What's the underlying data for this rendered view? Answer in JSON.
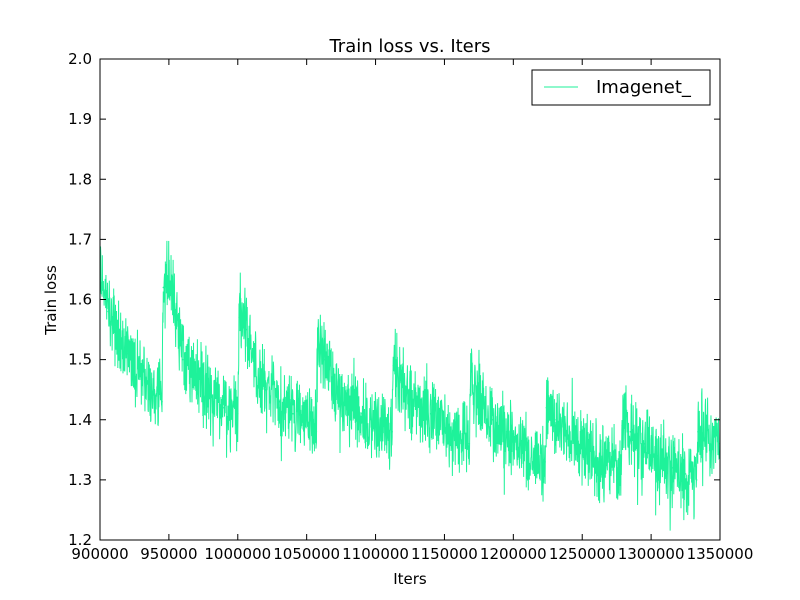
{
  "chart_data": {
    "type": "line",
    "title": "Train loss  vs. Iters",
    "xlabel": "Iters",
    "ylabel": "Train loss",
    "xlim": [
      900000,
      1350000
    ],
    "ylim": [
      1.2,
      2.0
    ],
    "xticks": [
      900000,
      950000,
      1000000,
      1050000,
      1100000,
      1150000,
      1200000,
      1250000,
      1300000,
      1350000
    ],
    "yticks": [
      1.2,
      1.3,
      1.4,
      1.5,
      1.6,
      1.7,
      1.8,
      1.9,
      2.0
    ],
    "grid": false,
    "legend_position": "top-right",
    "series": [
      {
        "name": "Imagenet_",
        "color": "#1ef29a",
        "noise_amplitude": 0.05,
        "x": [
          900000,
          902000,
          906000,
          912000,
          920000,
          930000,
          940000,
          945000,
          946000,
          950000,
          955000,
          960000,
          970000,
          980000,
          990000,
          1000000,
          1001000,
          1006000,
          1012000,
          1020000,
          1030000,
          1040000,
          1050000,
          1057000,
          1058000,
          1063000,
          1070000,
          1080000,
          1090000,
          1100000,
          1112000,
          1113000,
          1120000,
          1130000,
          1140000,
          1150000,
          1160000,
          1168000,
          1169000,
          1175000,
          1185000,
          1195000,
          1205000,
          1215000,
          1223000,
          1224000,
          1230000,
          1240000,
          1250000,
          1260000,
          1270000,
          1278000,
          1279000,
          1285000,
          1295000,
          1305000,
          1315000,
          1325000,
          1333000,
          1334000,
          1340000,
          1350000
        ],
        "y": [
          1.67,
          1.62,
          1.58,
          1.54,
          1.51,
          1.47,
          1.44,
          1.43,
          1.62,
          1.63,
          1.58,
          1.5,
          1.47,
          1.44,
          1.42,
          1.41,
          1.57,
          1.55,
          1.49,
          1.45,
          1.43,
          1.41,
          1.4,
          1.38,
          1.52,
          1.5,
          1.46,
          1.43,
          1.41,
          1.39,
          1.38,
          1.49,
          1.46,
          1.42,
          1.41,
          1.39,
          1.38,
          1.36,
          1.45,
          1.43,
          1.4,
          1.38,
          1.36,
          1.34,
          1.33,
          1.42,
          1.4,
          1.37,
          1.35,
          1.34,
          1.33,
          1.31,
          1.39,
          1.38,
          1.36,
          1.34,
          1.32,
          1.31,
          1.3,
          1.38,
          1.37,
          1.36
        ]
      }
    ]
  }
}
